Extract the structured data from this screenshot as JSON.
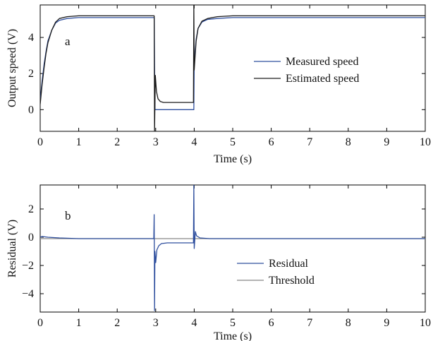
{
  "chart_data": [
    {
      "type": "line",
      "panel_label": "a",
      "xlabel": "Time (s)",
      "ylabel": "Output speed (V)",
      "xlim": [
        0,
        10
      ],
      "ylim": [
        -1.2,
        5.8
      ],
      "xticks": [
        "0",
        "1",
        "2",
        "3",
        "4",
        "5",
        "6",
        "7",
        "8",
        "9",
        "10"
      ],
      "yticks": [
        {
          "value": 0,
          "label": "0"
        },
        {
          "value": 2,
          "label": "2"
        },
        {
          "value": 4,
          "label": "4"
        }
      ],
      "legend_position": "center-right",
      "series": [
        {
          "name": "Measured speed",
          "color": "#2f4f9e",
          "points": [
            [
              0,
              0.5
            ],
            [
              0.05,
              1.6
            ],
            [
              0.1,
              2.5
            ],
            [
              0.15,
              3.2
            ],
            [
              0.2,
              3.8
            ],
            [
              0.3,
              4.4
            ],
            [
              0.4,
              4.8
            ],
            [
              0.5,
              4.95
            ],
            [
              0.7,
              5.05
            ],
            [
              1,
              5.1
            ],
            [
              2,
              5.1
            ],
            [
              2.96,
              5.1
            ],
            [
              2.98,
              0
            ],
            [
              3,
              0
            ],
            [
              3.5,
              0
            ],
            [
              3.99,
              0
            ],
            [
              4.0,
              2.6
            ],
            [
              4.05,
              3.9
            ],
            [
              4.1,
              4.5
            ],
            [
              4.2,
              4.85
            ],
            [
              4.35,
              5.0
            ],
            [
              4.6,
              5.05
            ],
            [
              5,
              5.1
            ],
            [
              10,
              5.1
            ]
          ]
        },
        {
          "name": "Estimated speed",
          "color": "#1a1a1a",
          "points": [
            [
              0,
              0.3
            ],
            [
              0.05,
              1.4
            ],
            [
              0.1,
              2.3
            ],
            [
              0.15,
              3.1
            ],
            [
              0.2,
              3.7
            ],
            [
              0.3,
              4.4
            ],
            [
              0.4,
              4.85
            ],
            [
              0.5,
              5.05
            ],
            [
              0.7,
              5.15
            ],
            [
              1,
              5.2
            ],
            [
              2,
              5.2
            ],
            [
              2.96,
              5.2
            ],
            [
              2.97,
              -1.2
            ],
            [
              2.99,
              1.9
            ],
            [
              3.02,
              1.0
            ],
            [
              3.06,
              0.6
            ],
            [
              3.12,
              0.45
            ],
            [
              3.2,
              0.4
            ],
            [
              3.5,
              0.4
            ],
            [
              3.98,
              0.4
            ],
            [
              3.99,
              5.8
            ],
            [
              4.0,
              2.2
            ],
            [
              4.05,
              3.8
            ],
            [
              4.1,
              4.5
            ],
            [
              4.2,
              4.9
            ],
            [
              4.35,
              5.05
            ],
            [
              4.6,
              5.15
            ],
            [
              5,
              5.2
            ],
            [
              10,
              5.2
            ]
          ]
        }
      ]
    },
    {
      "type": "line",
      "panel_label": "b",
      "xlabel": "Time (s)",
      "ylabel": "Residual (V)",
      "xlim": [
        0,
        10
      ],
      "ylim": [
        -5.3,
        3.7
      ],
      "xticks": [
        "0",
        "1",
        "2",
        "3",
        "4",
        "5",
        "6",
        "7",
        "8",
        "9",
        "10"
      ],
      "yticks": [
        {
          "value": -4,
          "label": "−4"
        },
        {
          "value": -2,
          "label": "−2"
        },
        {
          "value": 0,
          "label": "0"
        },
        {
          "value": 2,
          "label": "2"
        }
      ],
      "legend_position": "bottom-center",
      "series": [
        {
          "name": "Residual",
          "color": "#2f4f9e",
          "points": [
            [
              0,
              0
            ],
            [
              0.05,
              0.05
            ],
            [
              0.2,
              0.0
            ],
            [
              0.5,
              -0.05
            ],
            [
              1,
              -0.1
            ],
            [
              2,
              -0.1
            ],
            [
              2.95,
              -0.1
            ],
            [
              2.96,
              1.6
            ],
            [
              2.97,
              -5.2
            ],
            [
              2.98,
              -1.0
            ],
            [
              3.0,
              -1.8
            ],
            [
              3.03,
              -0.9
            ],
            [
              3.08,
              -0.6
            ],
            [
              3.15,
              -0.45
            ],
            [
              3.3,
              -0.4
            ],
            [
              3.98,
              -0.4
            ],
            [
              3.99,
              3.7
            ],
            [
              4.0,
              -0.8
            ],
            [
              4.03,
              0.4
            ],
            [
              4.06,
              0.1
            ],
            [
              4.15,
              -0.05
            ],
            [
              4.4,
              -0.1
            ],
            [
              10,
              -0.1
            ]
          ]
        },
        {
          "name": "Threshold",
          "color": "#888888",
          "points": [
            [
              0,
              -0.1
            ],
            [
              10,
              -0.1
            ]
          ]
        }
      ]
    }
  ]
}
